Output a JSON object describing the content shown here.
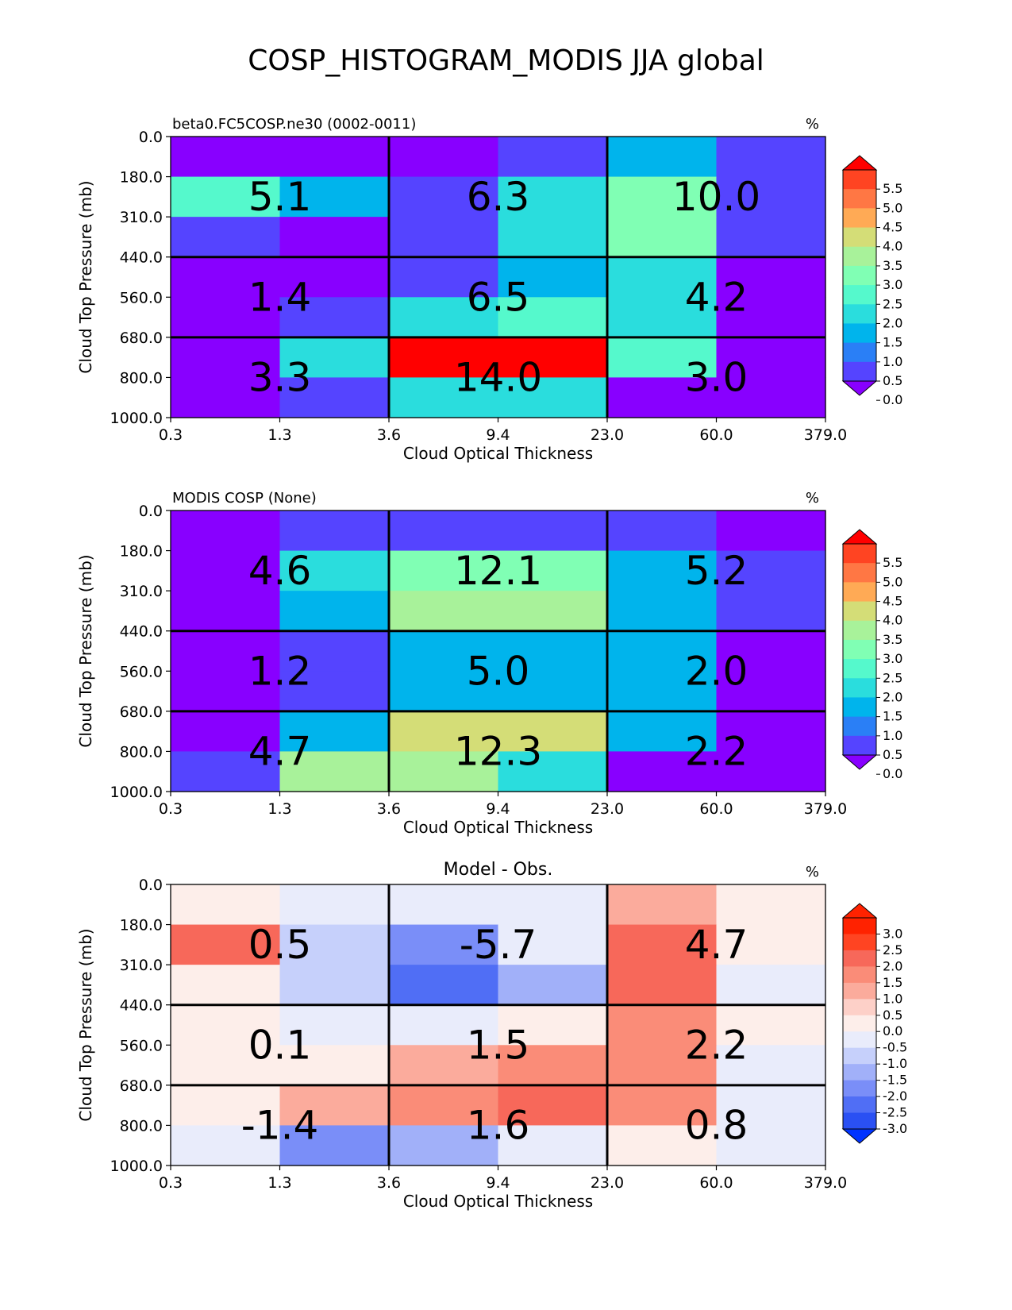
{
  "title": "COSP_HISTOGRAM_MODIS JJA global",
  "chart_data": [
    {
      "type": "heatmap",
      "subtitle_left": "beta0.FC5COSP.ne30 (0002-0011)",
      "subtitle_center": "",
      "units": "%",
      "xlabel": "Cloud Optical Thickness",
      "ylabel": "Cloud Top Pressure (mb)",
      "x_ticks": [
        "0.3",
        "1.3",
        "3.6",
        "9.4",
        "23.0",
        "60.0",
        "379.0"
      ],
      "y_ticks": [
        "0.0",
        "180.0",
        "310.0",
        "440.0",
        "560.0",
        "680.0",
        "800.0",
        "1000.0"
      ],
      "cell_values": [
        [
          0.0,
          0.0,
          0.0,
          0.7,
          1.5,
          0.8
        ],
        [
          2.2,
          1.5,
          0.8,
          2.0,
          2.8,
          0.8
        ],
        [
          0.8,
          0.0,
          0.8,
          2.0,
          2.8,
          0.8
        ],
        [
          0.1,
          0.0,
          0.8,
          1.6,
          2.0,
          0.0
        ],
        [
          0.1,
          0.8,
          2.0,
          2.2,
          2.0,
          0.0
        ],
        [
          0.1,
          2.0,
          5.3,
          5.3,
          2.3,
          0.0
        ],
        [
          0.1,
          0.8,
          1.8,
          1.8,
          0.0,
          0.0
        ]
      ],
      "group_values": [
        [
          "5.1",
          "6.3",
          "10.0"
        ],
        [
          "1.4",
          "6.5",
          "4.2"
        ],
        [
          "3.3",
          "14.0",
          "3.0"
        ]
      ],
      "colorbar_ticks": [
        "5.5",
        "5.0",
        "4.5",
        "4.0",
        "3.5",
        "3.0",
        "2.5",
        "2.0",
        "1.5",
        "1.0",
        "0.5",
        "0.0"
      ],
      "colorbar_colors": [
        "#ff0000",
        "#ff4422",
        "#ff7744",
        "#ffaa55",
        "#d4dd77",
        "#a8f29a",
        "#80ffb4",
        "#55f9cc",
        "#2adddd",
        "#00b4ec",
        "#2a7ff6",
        "#5544ff",
        "#8800ff"
      ],
      "color_range": [
        0.0,
        5.5
      ]
    },
    {
      "type": "heatmap",
      "subtitle_left": "MODIS COSP (None)",
      "subtitle_center": "",
      "units": "%",
      "xlabel": "Cloud Optical Thickness",
      "ylabel": "Cloud Top Pressure (mb)",
      "x_ticks": [
        "0.3",
        "1.3",
        "3.6",
        "9.4",
        "23.0",
        "60.0",
        "379.0"
      ],
      "y_ticks": [
        "0.0",
        "180.0",
        "310.0",
        "440.0",
        "560.0",
        "680.0",
        "800.0",
        "1000.0"
      ],
      "cell_values": [
        [
          0.0,
          0.8,
          0.8,
          0.8,
          0.8,
          0.0
        ],
        [
          0.0,
          2.0,
          2.8,
          2.8,
          1.3,
          0.8
        ],
        [
          0.0,
          1.3,
          3.0,
          3.0,
          1.3,
          0.8
        ],
        [
          0.0,
          0.8,
          1.3,
          1.3,
          1.3,
          0.0
        ],
        [
          0.0,
          0.8,
          1.3,
          1.3,
          1.3,
          0.0
        ],
        [
          0.0,
          1.3,
          3.8,
          3.8,
          1.3,
          0.0
        ],
        [
          0.8,
          3.0,
          3.3,
          2.0,
          0.0,
          0.0
        ]
      ],
      "group_values": [
        [
          "4.6",
          "12.1",
          "5.2"
        ],
        [
          "1.2",
          "5.0",
          "2.0"
        ],
        [
          "4.7",
          "12.3",
          "2.2"
        ]
      ],
      "colorbar_ticks": [
        "5.5",
        "5.0",
        "4.5",
        "4.0",
        "3.5",
        "3.0",
        "2.5",
        "2.0",
        "1.5",
        "1.0",
        "0.5",
        "0.0"
      ],
      "colorbar_colors": [
        "#ff0000",
        "#ff4422",
        "#ff7744",
        "#ffaa55",
        "#d4dd77",
        "#a8f29a",
        "#80ffb4",
        "#55f9cc",
        "#2adddd",
        "#00b4ec",
        "#2a7ff6",
        "#5544ff",
        "#8800ff"
      ],
      "color_range": [
        0.0,
        5.5
      ]
    },
    {
      "type": "heatmap",
      "subtitle_left": "",
      "subtitle_center": "Model - Obs.",
      "units": "%",
      "xlabel": "Cloud Optical Thickness",
      "ylabel": "Cloud Top Pressure (mb)",
      "x_ticks": [
        "0.3",
        "1.3",
        "3.6",
        "9.4",
        "23.0",
        "60.0",
        "379.0"
      ],
      "y_ticks": [
        "0.0",
        "180.0",
        "310.0",
        "440.0",
        "560.0",
        "680.0",
        "800.0",
        "1000.0"
      ],
      "cell_values": [
        [
          0.2,
          -0.3,
          -0.3,
          -0.3,
          0.8,
          0.2
        ],
        [
          1.8,
          -0.8,
          -1.6,
          -0.3,
          1.8,
          0.2
        ],
        [
          0.2,
          -0.8,
          -2.3,
          -1.3,
          1.8,
          -0.3
        ],
        [
          0.2,
          -0.3,
          -0.3,
          0.2,
          1.3,
          0.2
        ],
        [
          0.2,
          0.2,
          0.8,
          1.3,
          1.3,
          -0.3
        ],
        [
          0.2,
          0.8,
          1.3,
          1.8,
          1.3,
          -0.3
        ],
        [
          -0.3,
          -1.8,
          -1.3,
          -0.3,
          0.2,
          -0.3
        ]
      ],
      "group_values": [
        [
          "0.5",
          "-5.7",
          "4.7"
        ],
        [
          "0.1",
          "1.5",
          "2.2"
        ],
        [
          "-1.4",
          "1.6",
          "0.8"
        ]
      ],
      "colorbar_ticks": [
        "3.0",
        "2.5",
        "2.0",
        "1.5",
        "1.0",
        "0.5",
        "0.0",
        "-0.5",
        "-1.0",
        "-1.5",
        "-2.0",
        "-2.5",
        "-3.0"
      ],
      "colorbar_colors": [
        "#ff2200",
        "#ff2200",
        "#ff4422",
        "#f7685a",
        "#fa8c78",
        "#fbab9c",
        "#fdd0c8",
        "#fdeeea",
        "#e9ecfb",
        "#c6d0fb",
        "#a1b0f9",
        "#7a8ef8",
        "#506ef5",
        "#2a50f3",
        "#0033ff"
      ],
      "color_range": [
        -3.25,
        3.25
      ]
    }
  ]
}
